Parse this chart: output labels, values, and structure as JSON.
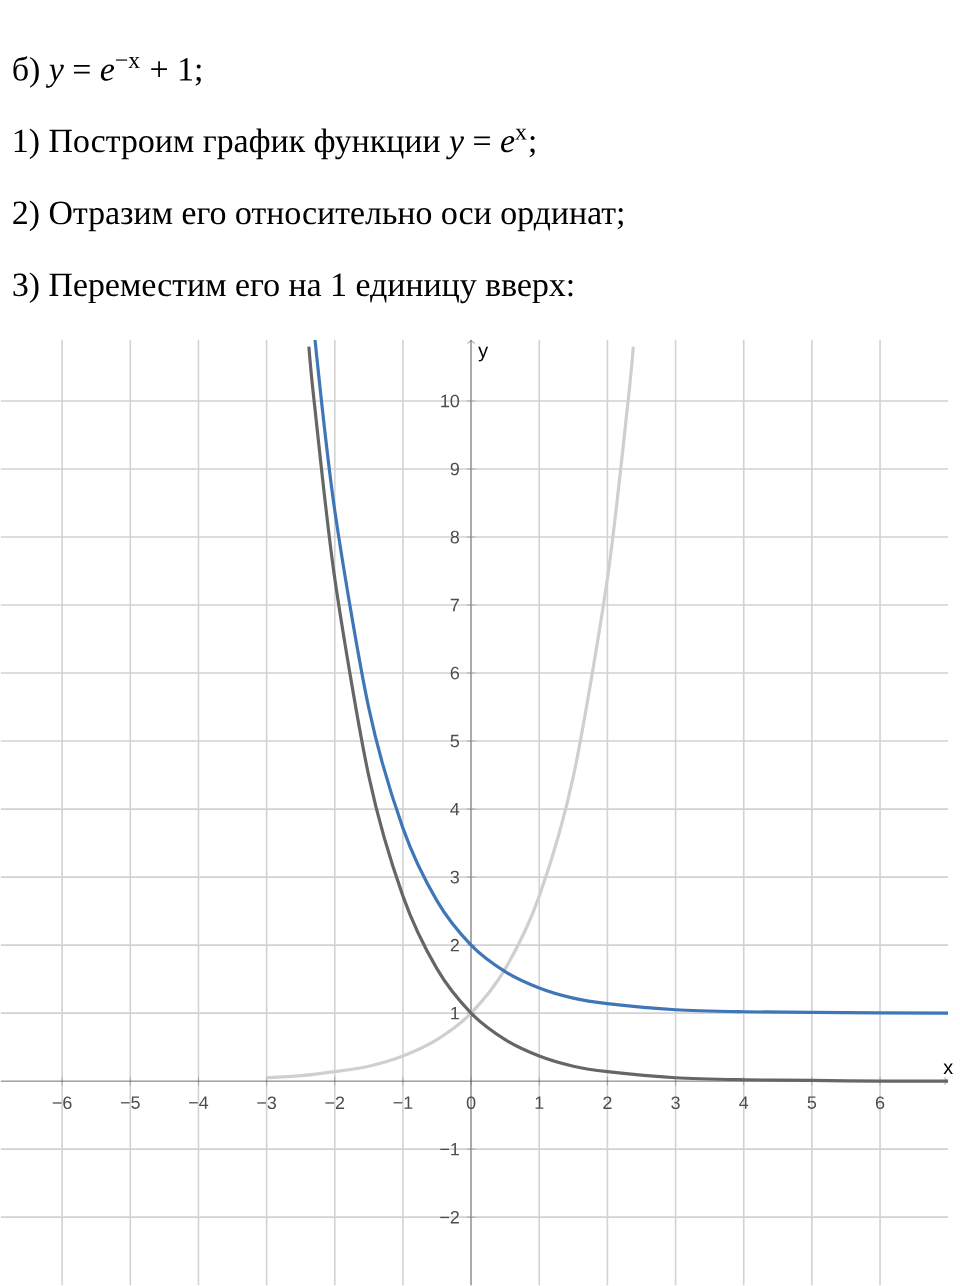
{
  "chart_data": {
    "type": "line",
    "title": "б) *y* = *e*$^{−x}$ + 1;",
    "annotations": [
      "1) Построим график функции *y* = *e*$^{x}$;",
      "2) Отразим его относительно оси ординат;",
      "3) Переместим его на 1 единицу вверх:"
    ],
    "xlabel": "x",
    "ylabel": "y",
    "xlim": [
      -6.9,
      7
    ],
    "ylim": [
      -3,
      10.9
    ],
    "xticks": [
      {
        "value": -6,
        "label": "−6"
      },
      {
        "value": -5,
        "label": "−5"
      },
      {
        "value": -4,
        "label": "−4"
      },
      {
        "value": -3,
        "label": "−3"
      },
      {
        "value": -2,
        "label": "−2"
      },
      {
        "value": -1,
        "label": "−1"
      },
      0,
      1,
      2,
      3,
      4,
      5,
      6
    ],
    "yticks": [
      {
        "value": -2,
        "label": "−2"
      },
      {
        "value": -1,
        "label": "−1"
      },
      1,
      2,
      3,
      4,
      5,
      6,
      7,
      8,
      9,
      10
    ],
    "grid": true,
    "marker": "none",
    "line_style": "solid",
    "series": [
      {
        "color": "#cfcfcf",
        "x": [
          -3,
          -2.5,
          -2,
          -1.5,
          -1,
          -0.5,
          0,
          0.5,
          1,
          1.5,
          2,
          2.3,
          2.38
        ],
        "values": [
          0.05,
          0.08,
          0.14,
          0.22,
          0.37,
          0.61,
          1,
          1.65,
          2.72,
          4.48,
          7.39,
          9.97,
          10.8
        ]
      },
      {
        "color": "#666666",
        "x": [
          -2.38,
          -2.3,
          -2,
          -1.5,
          -1,
          -0.5,
          0,
          0.5,
          1,
          1.5,
          2,
          3,
          4,
          5,
          6,
          7
        ],
        "values": [
          10.8,
          9.97,
          7.39,
          4.48,
          2.72,
          1.65,
          1,
          0.61,
          0.37,
          0.22,
          0.14,
          0.05,
          0.02,
          0.01,
          0,
          0
        ]
      },
      {
        "color": "#3f76b8",
        "x": [
          -2.29,
          -2,
          -1.5,
          -1,
          -0.5,
          0,
          0.5,
          1,
          1.5,
          2,
          3,
          4,
          5,
          7
        ],
        "values": [
          10.9,
          8.39,
          5.48,
          3.72,
          2.65,
          2,
          1.61,
          1.37,
          1.22,
          1.14,
          1.05,
          1.02,
          1.01,
          1
        ]
      }
    ]
  }
}
